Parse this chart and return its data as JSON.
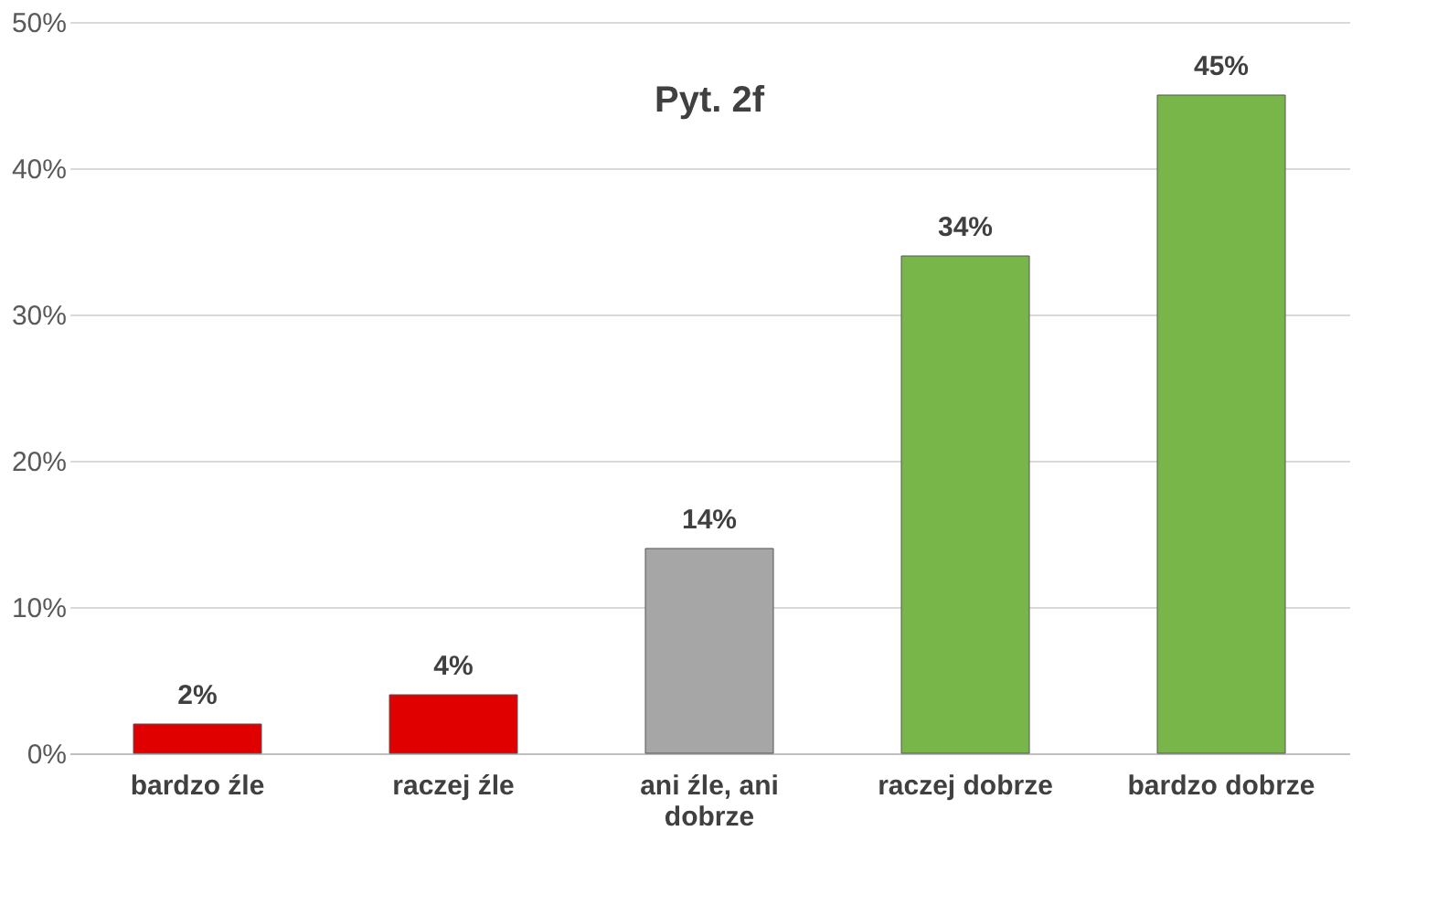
{
  "chart_data": {
    "type": "bar",
    "title": "Pyt. 2f",
    "categories": [
      "bardzo źle",
      "raczej źle",
      "ani źle, ani dobrze",
      "raczej dobrze",
      "bardzo dobrze"
    ],
    "values": [
      2,
      4,
      14,
      34,
      45
    ],
    "colors": [
      "#e00000",
      "#e00000",
      "#a6a6a6",
      "#78b64a",
      "#78b64a"
    ],
    "value_labels": [
      "2%",
      "4%",
      "14%",
      "34%",
      "45%"
    ],
    "ylim": [
      0,
      50
    ],
    "yticks": [
      {
        "value": 0,
        "label": "0%"
      },
      {
        "value": 10,
        "label": "10%"
      },
      {
        "value": 20,
        "label": "20%"
      },
      {
        "value": 30,
        "label": "30%"
      },
      {
        "value": 40,
        "label": "40%"
      },
      {
        "value": 50,
        "label": "50%"
      }
    ],
    "grid": "y"
  }
}
